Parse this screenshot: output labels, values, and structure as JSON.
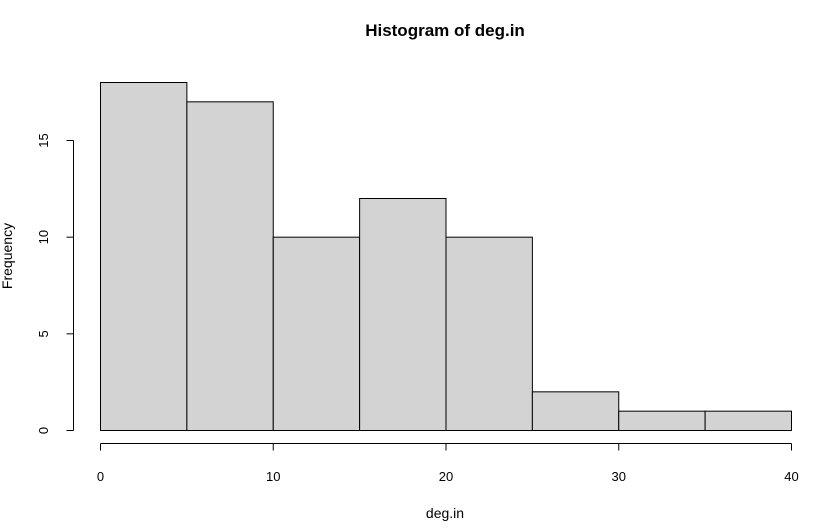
{
  "chart_data": {
    "type": "bar",
    "title": "Histogram of deg.in",
    "xlabel": "deg.in",
    "ylabel": "Frequency",
    "bins": [
      {
        "start": 0,
        "end": 5,
        "value": 18
      },
      {
        "start": 5,
        "end": 10,
        "value": 17
      },
      {
        "start": 10,
        "end": 15,
        "value": 10
      },
      {
        "start": 15,
        "end": 20,
        "value": 12
      },
      {
        "start": 20,
        "end": 25,
        "value": 10
      },
      {
        "start": 25,
        "end": 30,
        "value": 2
      },
      {
        "start": 30,
        "end": 35,
        "value": 1
      },
      {
        "start": 35,
        "end": 40,
        "value": 1
      }
    ],
    "xlim": [
      0,
      40
    ],
    "ylim": [
      0,
      18
    ],
    "x_ticks": [
      0,
      10,
      20,
      30,
      40
    ],
    "y_ticks": [
      0,
      5,
      10,
      15
    ],
    "grid": false,
    "legend": "none",
    "bar_color": "#d3d3d3",
    "edge_color": "#000000"
  }
}
